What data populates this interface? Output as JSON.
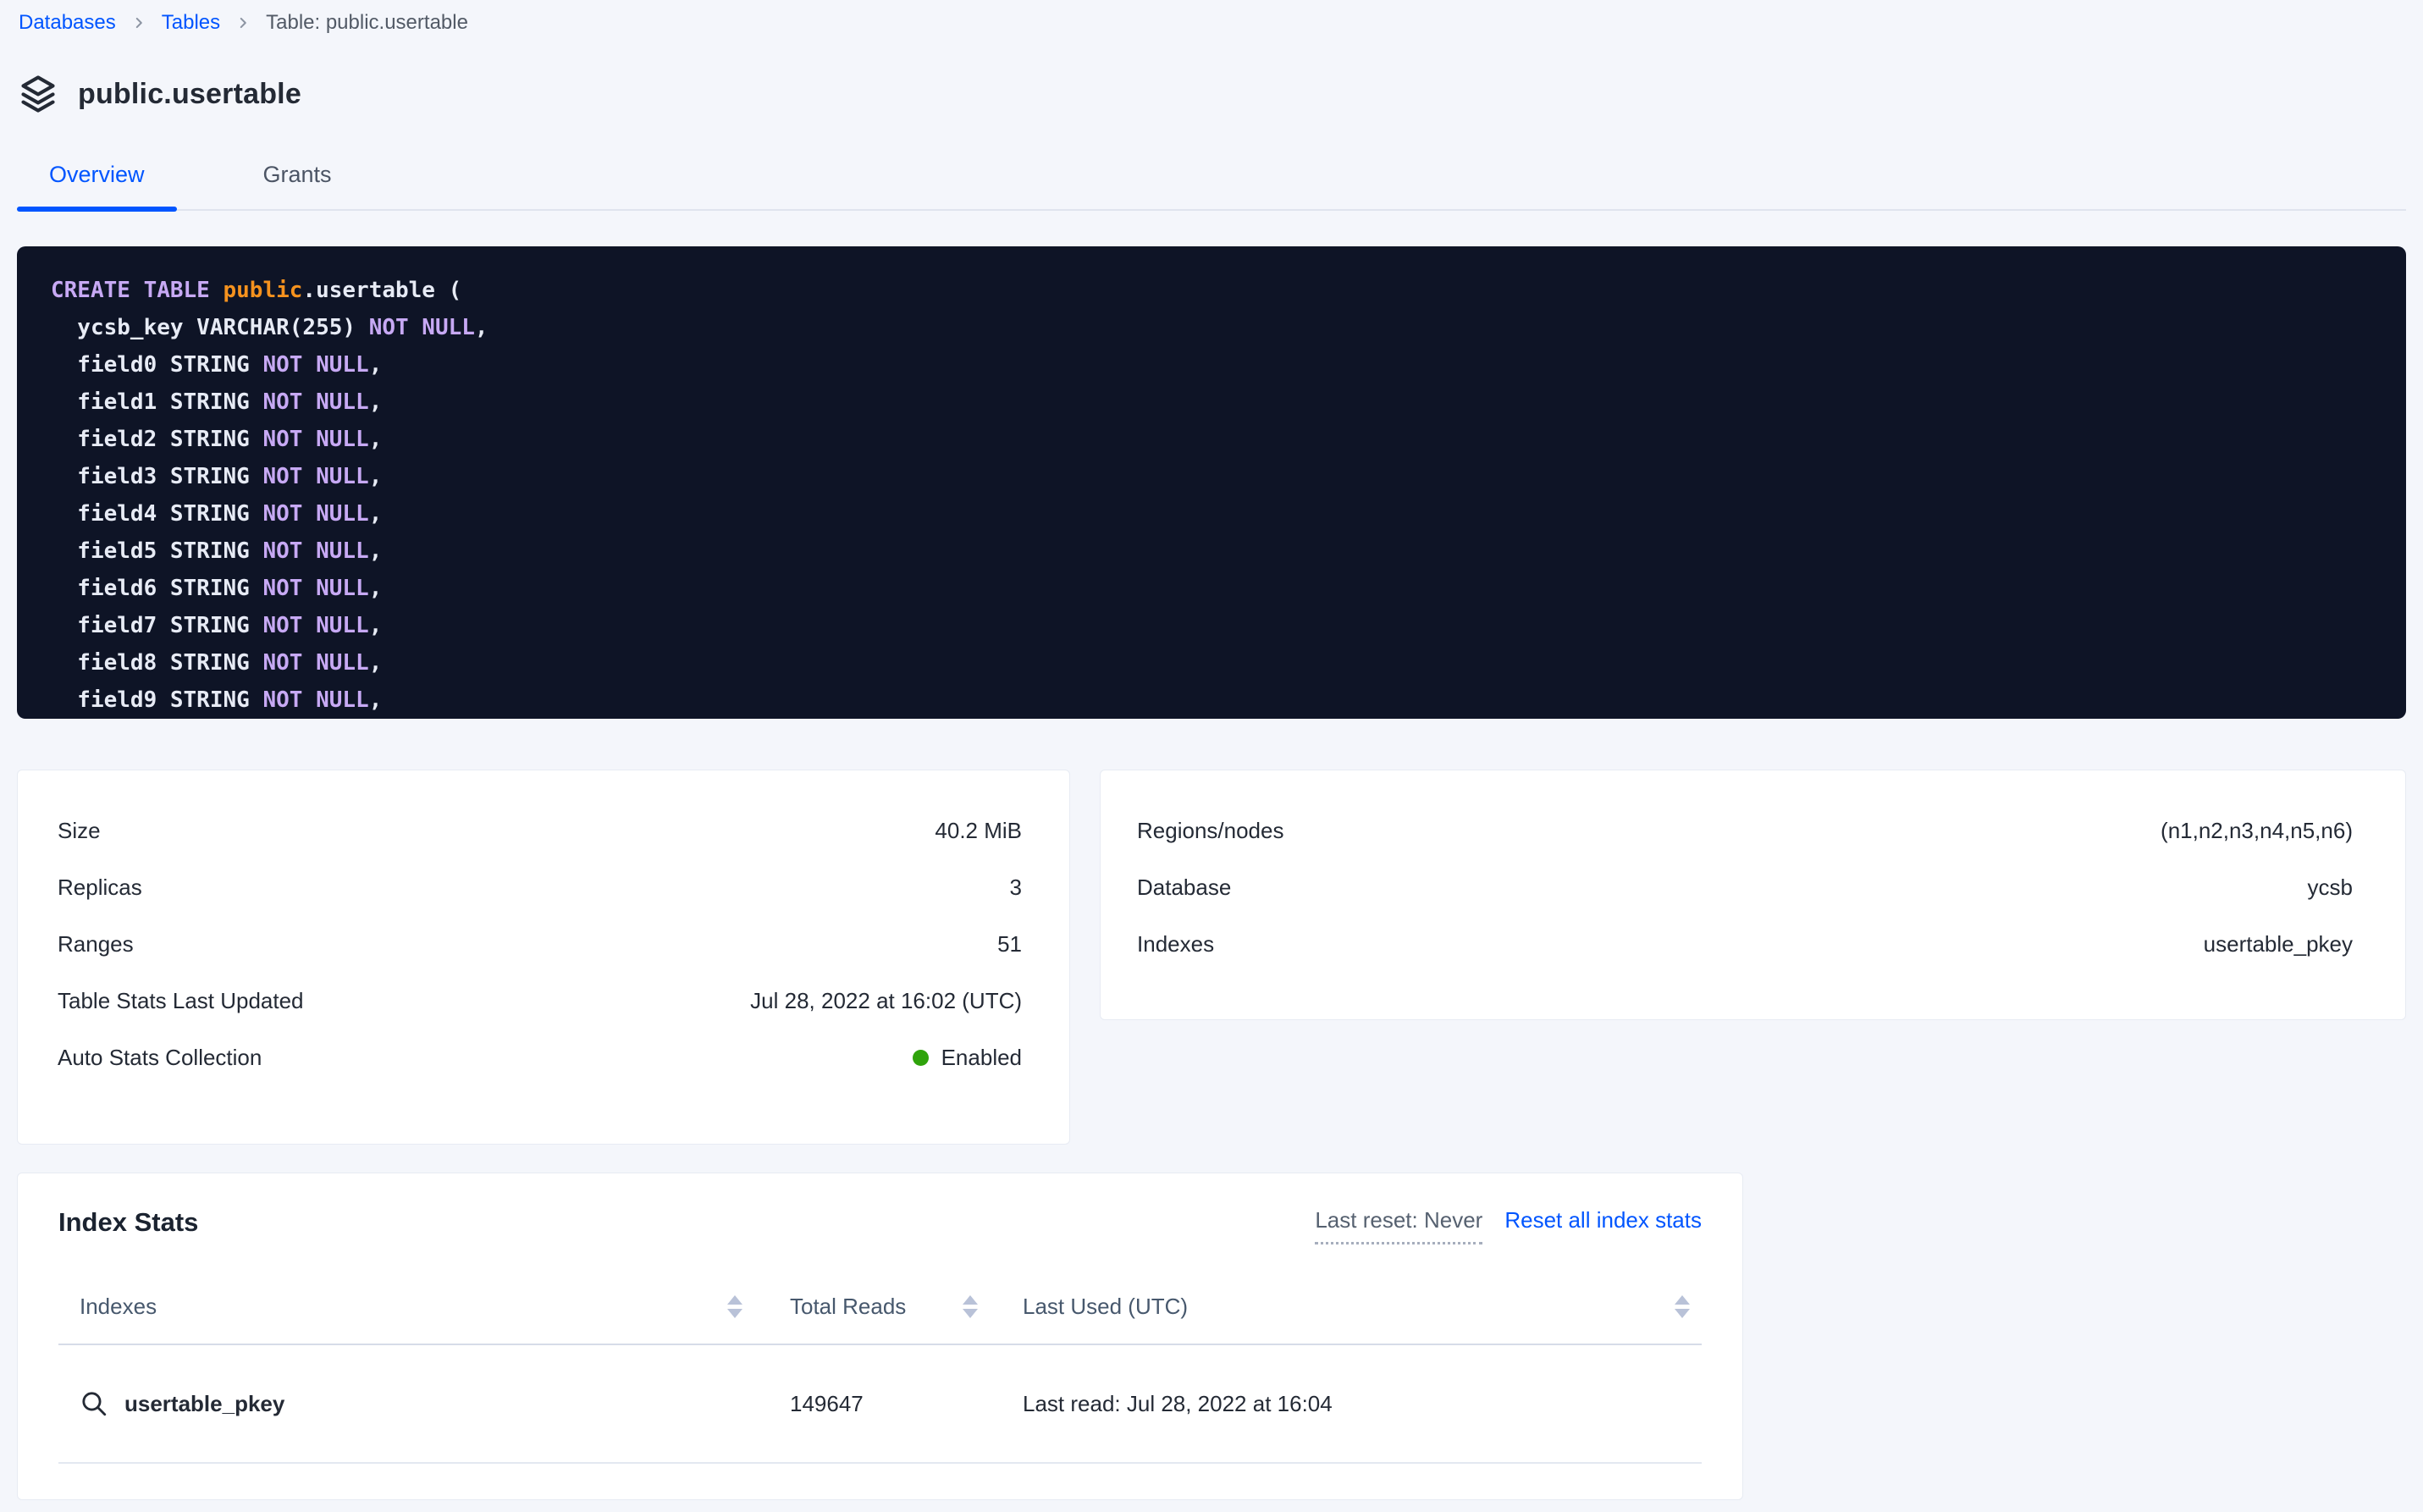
{
  "breadcrumb": {
    "items": [
      {
        "label": "Databases"
      },
      {
        "label": "Tables"
      },
      {
        "label": "Table: public.usertable"
      }
    ]
  },
  "header": {
    "title": "public.usertable"
  },
  "tabs": [
    {
      "label": "Overview"
    },
    {
      "label": "Grants"
    }
  ],
  "sql": {
    "lines": [
      [
        {
          "c": "kw",
          "t": "CREATE TABLE "
        },
        {
          "c": "db",
          "t": "public"
        },
        {
          "c": "id",
          "t": ".usertable ("
        }
      ],
      [
        {
          "c": "id",
          "t": "  ycsb_key VARCHAR(255) "
        },
        {
          "c": "kw",
          "t": "NOT NULL"
        },
        {
          "c": "id",
          "t": ","
        }
      ],
      [
        {
          "c": "id",
          "t": "  field0 STRING "
        },
        {
          "c": "kw",
          "t": "NOT NULL"
        },
        {
          "c": "id",
          "t": ","
        }
      ],
      [
        {
          "c": "id",
          "t": "  field1 STRING "
        },
        {
          "c": "kw",
          "t": "NOT NULL"
        },
        {
          "c": "id",
          "t": ","
        }
      ],
      [
        {
          "c": "id",
          "t": "  field2 STRING "
        },
        {
          "c": "kw",
          "t": "NOT NULL"
        },
        {
          "c": "id",
          "t": ","
        }
      ],
      [
        {
          "c": "id",
          "t": "  field3 STRING "
        },
        {
          "c": "kw",
          "t": "NOT NULL"
        },
        {
          "c": "id",
          "t": ","
        }
      ],
      [
        {
          "c": "id",
          "t": "  field4 STRING "
        },
        {
          "c": "kw",
          "t": "NOT NULL"
        },
        {
          "c": "id",
          "t": ","
        }
      ],
      [
        {
          "c": "id",
          "t": "  field5 STRING "
        },
        {
          "c": "kw",
          "t": "NOT NULL"
        },
        {
          "c": "id",
          "t": ","
        }
      ],
      [
        {
          "c": "id",
          "t": "  field6 STRING "
        },
        {
          "c": "kw",
          "t": "NOT NULL"
        },
        {
          "c": "id",
          "t": ","
        }
      ],
      [
        {
          "c": "id",
          "t": "  field7 STRING "
        },
        {
          "c": "kw",
          "t": "NOT NULL"
        },
        {
          "c": "id",
          "t": ","
        }
      ],
      [
        {
          "c": "id",
          "t": "  field8 STRING "
        },
        {
          "c": "kw",
          "t": "NOT NULL"
        },
        {
          "c": "id",
          "t": ","
        }
      ],
      [
        {
          "c": "id",
          "t": "  field9 STRING "
        },
        {
          "c": "kw",
          "t": "NOT NULL"
        },
        {
          "c": "id",
          "t": ","
        }
      ]
    ]
  },
  "overview_stats": {
    "left": [
      {
        "label": "Size",
        "value": "40.2 MiB"
      },
      {
        "label": "Replicas",
        "value": "3"
      },
      {
        "label": "Ranges",
        "value": "51"
      },
      {
        "label": "Table Stats Last Updated",
        "value": "Jul 28, 2022 at 16:02 (UTC)"
      },
      {
        "label": "Auto Stats Collection",
        "value": "Enabled"
      }
    ],
    "right": [
      {
        "label": "Regions/nodes",
        "value": "(n1,n2,n3,n4,n5,n6)"
      },
      {
        "label": "Database",
        "value": "ycsb"
      },
      {
        "label": "Indexes",
        "value": "usertable_pkey"
      }
    ]
  },
  "index_stats": {
    "title": "Index Stats",
    "last_reset": "Last reset: Never",
    "reset_link": "Reset all index stats",
    "columns": [
      {
        "label": "Indexes"
      },
      {
        "label": "Total Reads"
      },
      {
        "label": "Last Used (UTC)"
      }
    ],
    "rows": [
      {
        "name": "usertable_pkey",
        "total_reads": "149647",
        "last_used": "Last read: Jul 28, 2022 at 16:04"
      }
    ]
  },
  "colors": {
    "accent_blue": "#0055ff",
    "code_background": "#0e1426",
    "sql_keyword": "#c7a9f4",
    "sql_schema": "#f5921e",
    "sql_text": "#e7ebf5",
    "status_green": "#2fa30b"
  }
}
